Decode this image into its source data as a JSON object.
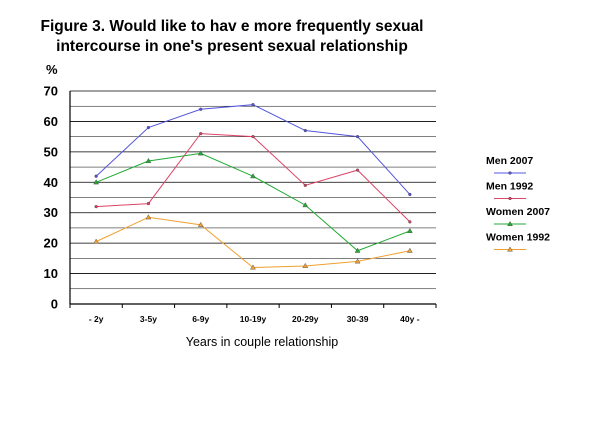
{
  "chart_data": {
    "type": "line",
    "title_line1": "Figure 3. Would like to hav e more frequently sexual",
    "title_line2": "intercourse in one's present sexual relationship",
    "ylabel": "%",
    "xlabel": "Years in couple relationship",
    "ylim": [
      0,
      70
    ],
    "yticks": [
      0,
      10,
      20,
      30,
      40,
      50,
      60,
      70
    ],
    "grid": true,
    "legend_position": "right",
    "categories": [
      "- 2y",
      "3-5y",
      "6-9y",
      "10-19y",
      "20-29y",
      "30-39",
      "40y -"
    ],
    "series": [
      {
        "name": "Men 2007",
        "color": "#5555dd",
        "marker": "dot",
        "values": [
          42,
          58,
          64,
          65.5,
          57,
          55,
          36
        ]
      },
      {
        "name": "Men 1992",
        "color": "#dd4466",
        "marker": "dot",
        "values": [
          32,
          33,
          56,
          55,
          39,
          44,
          27
        ]
      },
      {
        "name": "Women 2007",
        "color": "#22aa33",
        "marker": "triangle",
        "values": [
          40,
          47,
          49.5,
          42,
          32.5,
          17.5,
          24
        ]
      },
      {
        "name": "Women 1992",
        "color": "#f0a030",
        "marker": "triangle",
        "values": [
          20.5,
          28.5,
          26,
          12,
          12.5,
          14,
          17.5
        ]
      }
    ]
  }
}
